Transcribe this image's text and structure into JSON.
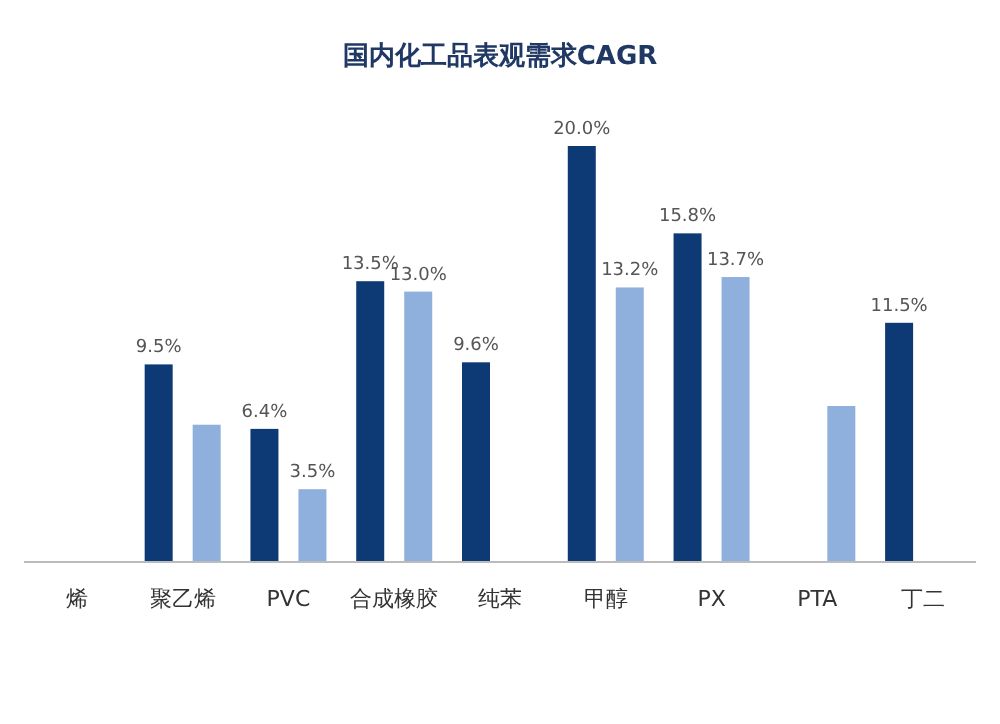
{
  "chart_data": {
    "type": "bar",
    "title": "国内化工品表观需求CAGR",
    "categories": [
      "烯",
      "聚乙烯",
      "PVC",
      "合成橡胶",
      "纯苯",
      "甲醇",
      "PX",
      "PTA",
      "丁二"
    ],
    "series": [
      {
        "color": "#0d3a75",
        "values": [
          null,
          9.5,
          6.4,
          13.5,
          9.6,
          20.0,
          15.8,
          null,
          11.5
        ],
        "value_labels": [
          null,
          "9.5%",
          "6.4%",
          "13.5%",
          "9.6%",
          "20.0%",
          "15.8%",
          null,
          "11.5%"
        ]
      },
      {
        "color": "#8fb0dc",
        "values": [
          null,
          6.6,
          3.5,
          13.0,
          null,
          13.2,
          13.7,
          7.5,
          null
        ],
        "value_labels": [
          null,
          null,
          "3.5%",
          "13.0%",
          null,
          "13.2%",
          "13.7%",
          null,
          null
        ]
      }
    ]
  }
}
